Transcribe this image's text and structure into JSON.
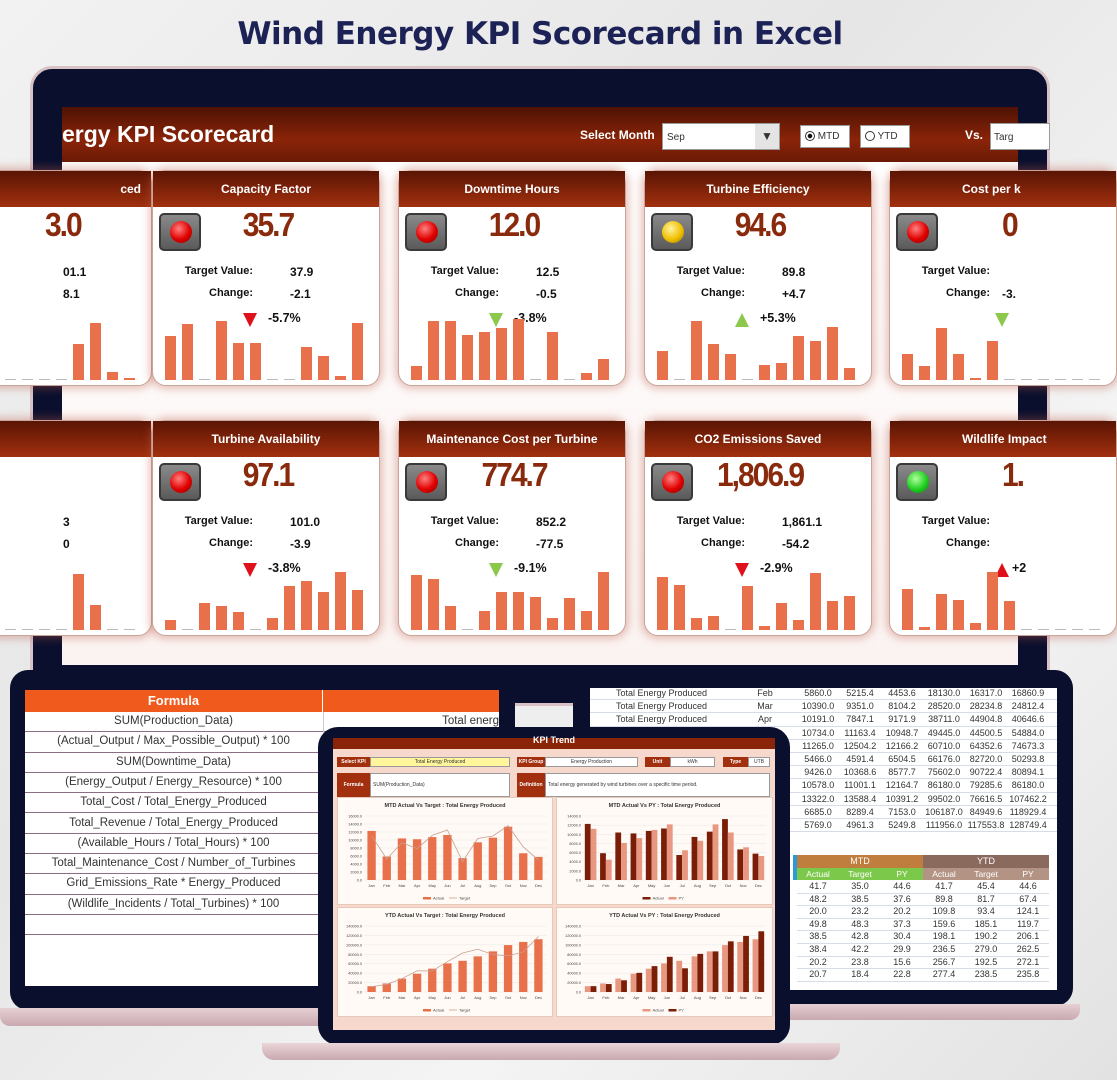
{
  "title": "Wind Energy KPI Scorecard in Excel",
  "colors": {
    "header_red": "#8a2408",
    "value_red": "#8a2a0c",
    "bar_orange": "#e8704a",
    "arrow_red": "#e0101a",
    "arrow_green": "#8cc84b",
    "formula_header": "#f05a1c",
    "navy": "#0b0f2e"
  },
  "dashboard": {
    "title_fragment": "ergy KPI Scorecard",
    "select_month_label": "Select Month",
    "month_value": "Sep",
    "dropdown_icon": "triangle-down",
    "mtd_label": "MTD",
    "ytd_label": "YTD",
    "selected_period": "MTD",
    "vs_label": "Vs.",
    "vs_value_fragment": "Targ",
    "cards": [
      {
        "partial": "left",
        "title": "ced",
        "value": "3.0",
        "target": "01.1",
        "change": "8.1",
        "sparkline": [
          0,
          0,
          0,
          0,
          0,
          0,
          0,
          0,
          88,
          138,
          20,
          5
        ]
      },
      {
        "title": "Capacity Factor",
        "light": "red",
        "value": "35.7",
        "target_label": "Target Value:",
        "target": "37.9",
        "change_label": "Change:",
        "change": "-2.1",
        "direction": "down",
        "arrow": "red",
        "pct": "-5.7%",
        "sparkline": [
          106,
          135,
          0,
          142,
          90,
          90,
          0,
          0,
          80,
          58,
          10,
          138
        ]
      },
      {
        "title": "Downtime Hours",
        "light": "red",
        "value": "12.0",
        "target_label": "Target Value:",
        "target": "12.5",
        "change_label": "Change:",
        "change": "-0.5",
        "direction": "down",
        "arrow": "green",
        "pct": "-3.8%",
        "sparkline": [
          33,
          142,
          142,
          108,
          116,
          125,
          148,
          0,
          116,
          0,
          18,
          51
        ]
      },
      {
        "title": "Turbine Efficiency",
        "light": "yellow",
        "value": "94.6",
        "target_label": "Target Value:",
        "target": "89.8",
        "change_label": "Change:",
        "change": "+4.7",
        "direction": "up",
        "arrow": "green",
        "pct": "+5.3%",
        "sparkline": [
          70,
          0,
          143,
          87,
          62,
          0,
          36,
          41,
          106,
          95,
          128,
          30
        ]
      },
      {
        "partial": "right",
        "title": "Cost per k",
        "light": "red",
        "value": "0",
        "target_label": "Target Value:",
        "change_label": "Change:",
        "change": "-3.",
        "direction": "down",
        "arrow": "green",
        "sparkline": [
          63,
          33,
          125,
          63,
          5,
          95,
          0,
          0,
          0,
          0,
          0,
          0
        ]
      },
      {
        "partial": "left",
        "title": "",
        "value": "",
        "target": "3",
        "change": "0",
        "sparkline": [
          0,
          0,
          0,
          0,
          0,
          0,
          0,
          0,
          136,
          61,
          0,
          0
        ]
      },
      {
        "title": "Turbine Availability",
        "light": "red",
        "value": "97.1",
        "target_label": "Target Value:",
        "target": "101.0",
        "change_label": "Change:",
        "change": "-3.9",
        "direction": "down",
        "arrow": "red",
        "pct": "-3.8%",
        "sparkline": [
          25,
          0,
          65,
          57,
          43,
          0,
          30,
          107,
          118,
          91,
          141,
          98
        ]
      },
      {
        "title": "Maintenance Cost per Turbine",
        "light": "red",
        "value": "774.7",
        "target_label": "Target Value:",
        "target": "852.2",
        "change_label": "Change:",
        "change": "-77.5",
        "direction": "down",
        "arrow": "green",
        "pct": "-9.1%",
        "sparkline": [
          133,
          123,
          57,
          0,
          45,
          91,
          91,
          80,
          30,
          78,
          45,
          141
        ]
      },
      {
        "title": "CO2 Emissions Saved",
        "light": "red",
        "value": "1,806.9",
        "target_label": "Target Value:",
        "target": "1,861.1",
        "change_label": "Change:",
        "change": "-54.2",
        "direction": "down",
        "arrow": "red",
        "pct": "-2.9%",
        "sparkline": [
          128,
          110,
          30,
          34,
          0,
          107,
          10,
          65,
          25,
          137,
          70,
          83
        ]
      },
      {
        "partial": "right",
        "title": "Wildlife Impact",
        "light": "green",
        "value": "1.",
        "target_label": "Target Value:",
        "change_label": "Change:",
        "direction": "up",
        "arrow": "red",
        "pct": "+2",
        "sparkline": [
          100,
          7,
          86,
          73,
          18,
          141,
          70,
          0,
          0,
          0,
          0,
          0
        ]
      }
    ]
  },
  "formula_sheet": {
    "headers": [
      "Formula",
      ""
    ],
    "rows": [
      [
        "SUM(Production_Data)",
        "Total energ"
      ],
      [
        "(Actual_Output / Max_Possible_Output) * 100",
        ""
      ],
      [
        "SUM(Downtime_Data)",
        ""
      ],
      [
        "(Energy_Output / Energy_Resource) * 100",
        ""
      ],
      [
        "Total_Cost / Total_Energy_Produced",
        ""
      ],
      [
        "Total_Revenue / Total_Energy_Produced",
        ""
      ],
      [
        "(Available_Hours / Total_Hours) * 100",
        ""
      ],
      [
        "Total_Maintenance_Cost / Number_of_Turbines",
        ""
      ],
      [
        "Grid_Emissions_Rate * Energy_Produced",
        ""
      ],
      [
        "(Wildlife_Incidents / Total_Turbines) * 100",
        ""
      ],
      [
        "",
        ""
      ]
    ]
  },
  "data_sheet": {
    "rows": [
      {
        "name": "Total Energy Produced",
        "month": "Feb",
        "values": [
          "5860.0",
          "5215.4",
          "4453.6",
          "18130.0",
          "16317.0",
          "16860.9"
        ]
      },
      {
        "name": "Total Energy Produced",
        "month": "Mar",
        "values": [
          "10390.0",
          "9351.0",
          "8104.2",
          "28520.0",
          "28234.8",
          "24812.4"
        ]
      },
      {
        "name": "Total Energy Produced",
        "month": "Apr",
        "values": [
          "10191.0",
          "7847.1",
          "9171.9",
          "38711.0",
          "44904.8",
          "40646.6"
        ]
      },
      {
        "name": "",
        "month": "",
        "values": [
          "10734.0",
          "11163.4",
          "10948.7",
          "49445.0",
          "44500.5",
          "54884.0"
        ]
      },
      {
        "name": "",
        "month": "",
        "values": [
          "11265.0",
          "12504.2",
          "12166.2",
          "60710.0",
          "64352.6",
          "74673.3"
        ]
      },
      {
        "name": "",
        "month": "",
        "values": [
          "5466.0",
          "4591.4",
          "6504.5",
          "66176.0",
          "82720.0",
          "50293.8"
        ]
      },
      {
        "name": "",
        "month": "",
        "values": [
          "9426.0",
          "10368.6",
          "8577.7",
          "75602.0",
          "90722.4",
          "80894.1"
        ]
      },
      {
        "name": "",
        "month": "",
        "values": [
          "10578.0",
          "11001.1",
          "12164.7",
          "86180.0",
          "79285.6",
          "86180.0"
        ]
      },
      {
        "name": "",
        "month": "",
        "values": [
          "13322.0",
          "13588.4",
          "10391.2",
          "99502.0",
          "76616.5",
          "107462.2"
        ]
      },
      {
        "name": "",
        "month": "",
        "values": [
          "6685.0",
          "8289.4",
          "7153.0",
          "106187.0",
          "84949.6",
          "118929.4"
        ]
      },
      {
        "name": "",
        "month": "",
        "values": [
          "5769.0",
          "4961.3",
          "5249.8",
          "111956.0",
          "117553.8",
          "128749.4"
        ]
      }
    ],
    "summary": {
      "group_headers": [
        "MTD",
        "YTD"
      ],
      "sub_headers": [
        "Actual",
        "Target",
        "PY",
        "Actual",
        "Target",
        "PY"
      ],
      "rows": [
        [
          "41.7",
          "35.0",
          "44.6",
          "41.7",
          "45.4",
          "44.6"
        ],
        [
          "48.2",
          "38.5",
          "37.6",
          "89.8",
          "81.7",
          "67.4"
        ],
        [
          "20.0",
          "23.2",
          "20.2",
          "109.8",
          "93.4",
          "124.1"
        ],
        [
          "49.8",
          "48.3",
          "37.3",
          "159.6",
          "185.1",
          "119.7"
        ],
        [
          "38.5",
          "42.8",
          "30.4",
          "198.1",
          "190.2",
          "206.1"
        ],
        [
          "38.4",
          "42.2",
          "29.9",
          "236.5",
          "279.0",
          "262.5"
        ],
        [
          "20.2",
          "23.8",
          "15.6",
          "256.7",
          "192.5",
          "272.1"
        ],
        [
          "20.7",
          "18.4",
          "22.8",
          "277.4",
          "238.5",
          "235.8"
        ]
      ]
    }
  },
  "kpi_trend": {
    "header": "KPI Trend",
    "select_kpi_label": "Select KPI",
    "select_kpi_value": "Total Energy Produced",
    "kpi_group_label": "KPI Group",
    "kpi_group_value": "Energy Production",
    "unit_label": "Unit",
    "unit_value": "kWh",
    "type_label": "Type",
    "type_value": "UTB",
    "formula_label": "Formula",
    "formula_value": "SUM(Production_Data)",
    "definition_label": "Definition",
    "definition_value": "Total energy generated by wind turbines over a specific time period."
  },
  "chart_data": [
    {
      "type": "bar",
      "title": "MTD Actual Vs Target : Total Energy Produced",
      "categories": [
        "Jan",
        "Feb",
        "Mar",
        "Apr",
        "May",
        "Jun",
        "Jul",
        "Aug",
        "Sep",
        "Oct",
        "Nov",
        "Dec"
      ],
      "series": [
        {
          "name": "Actual",
          "style": "bar",
          "color": "#e8704a",
          "values": [
            12270,
            5860,
            10390,
            10191,
            10734,
            11265,
            5466,
            9426,
            10578,
            13322,
            6685,
            5769
          ]
        },
        {
          "name": "Target",
          "style": "line",
          "color": "#c8a090",
          "values": [
            11101.6,
            5215.4,
            9351,
            7847.1,
            11163.4,
            12504.2,
            4591.4,
            10368.6,
            11001.1,
            13588.4,
            8289.4,
            4961.3
          ]
        }
      ],
      "ylim": [
        0,
        16000
      ],
      "ytick_step": 2000,
      "grid": true,
      "legend": "bottom"
    },
    {
      "type": "bar",
      "title": "MTD Actual Vs PY : Total Energy Produced",
      "categories": [
        "Jan",
        "Feb",
        "Mar",
        "Apr",
        "May",
        "Jun",
        "Jul",
        "Aug",
        "Sep",
        "Oct",
        "Nov",
        "Dec"
      ],
      "series": [
        {
          "name": "Actual",
          "style": "bar",
          "color": "#7a1e08",
          "values": [
            12270,
            5860,
            10390,
            10191,
            10734,
            11265,
            5466,
            9426,
            10578,
            13322,
            6685,
            5769
          ]
        },
        {
          "name": "PY",
          "style": "bar",
          "color": "#e89880",
          "values": [
            11200,
            4453.6,
            8104.2,
            9171.9,
            10948.7,
            12166.2,
            6504.5,
            8577.7,
            12164.7,
            10391.2,
            7153,
            5249.8
          ]
        }
      ],
      "ylim": [
        0,
        14000
      ],
      "ytick_step": 2000,
      "grid": true,
      "legend": "bottom"
    },
    {
      "type": "bar",
      "title": "YTD Actual Vs Target : Total Energy Produced",
      "categories": [
        "Jan",
        "Feb",
        "Mar",
        "Apr",
        "May",
        "Jun",
        "Jul",
        "Aug",
        "Sep",
        "Oct",
        "Nov",
        "Dec"
      ],
      "series": [
        {
          "name": "Actual",
          "style": "bar",
          "color": "#e8704a",
          "values": [
            12270,
            18130,
            28520,
            38711,
            49445,
            60710,
            66176,
            75602,
            86180,
            99502,
            106187,
            111956
          ]
        },
        {
          "name": "Target",
          "style": "line",
          "color": "#c8a090",
          "values": [
            11101.6,
            16317,
            28234.8,
            44904.8,
            44500.5,
            64352.6,
            82720,
            90722.4,
            79285.6,
            76616.5,
            84949.6,
            117553.8
          ]
        }
      ],
      "ylim": [
        0,
        140000
      ],
      "ytick_step": 20000,
      "grid": true,
      "legend": "bottom"
    },
    {
      "type": "bar",
      "title": "YTD Actual Vs PY : Total Energy Produced",
      "categories": [
        "Jan",
        "Feb",
        "Mar",
        "Apr",
        "May",
        "Jun",
        "Jul",
        "Aug",
        "Sep",
        "Oct",
        "Nov",
        "Dec"
      ],
      "series": [
        {
          "name": "Actual",
          "style": "bar",
          "color": "#e89880",
          "values": [
            12270,
            18130,
            28520,
            38711,
            49445,
            60710,
            66176,
            75602,
            86180,
            99502,
            106187,
            111956
          ]
        },
        {
          "name": "PY",
          "style": "bar",
          "color": "#7a1e08",
          "values": [
            12407.3,
            16860.9,
            24812.4,
            40646.6,
            54884,
            74673.3,
            50293.8,
            80894.1,
            86180,
            107462.2,
            118929.4,
            128749.4
          ]
        }
      ],
      "ylim": [
        0,
        140000
      ],
      "ytick_step": 20000,
      "grid": true,
      "legend": "bottom"
    }
  ]
}
